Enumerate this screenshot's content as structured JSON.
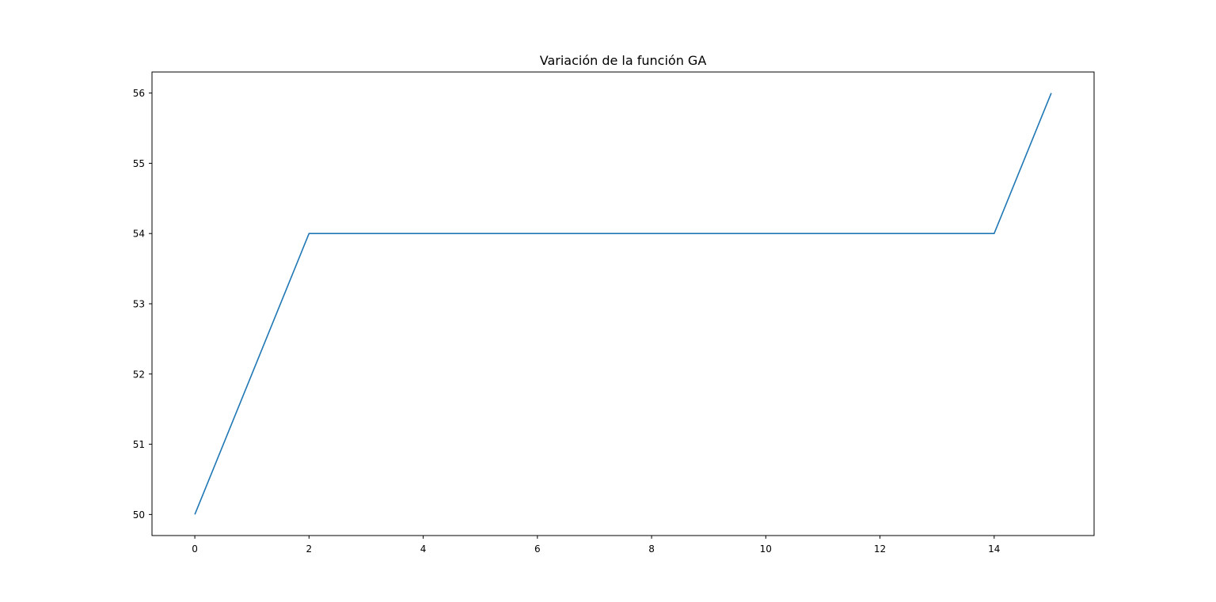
{
  "chart_data": {
    "type": "line",
    "title": "Variación de la función GA",
    "xlabel": "",
    "ylabel": "",
    "xlim": [
      -0.75,
      15.75
    ],
    "ylim": [
      49.7,
      56.3
    ],
    "xticks": [
      0,
      2,
      4,
      6,
      8,
      10,
      12,
      14
    ],
    "yticks": [
      50,
      51,
      52,
      53,
      54,
      55,
      56
    ],
    "grid": false,
    "series": [
      {
        "color": "#1f77b4",
        "x": [
          0,
          1,
          2,
          3,
          4,
          5,
          6,
          7,
          8,
          9,
          10,
          11,
          12,
          13,
          14,
          15
        ],
        "y": [
          50,
          52,
          54,
          54,
          54,
          54,
          54,
          54,
          54,
          54,
          54,
          54,
          54,
          54,
          54,
          56
        ]
      }
    ]
  }
}
